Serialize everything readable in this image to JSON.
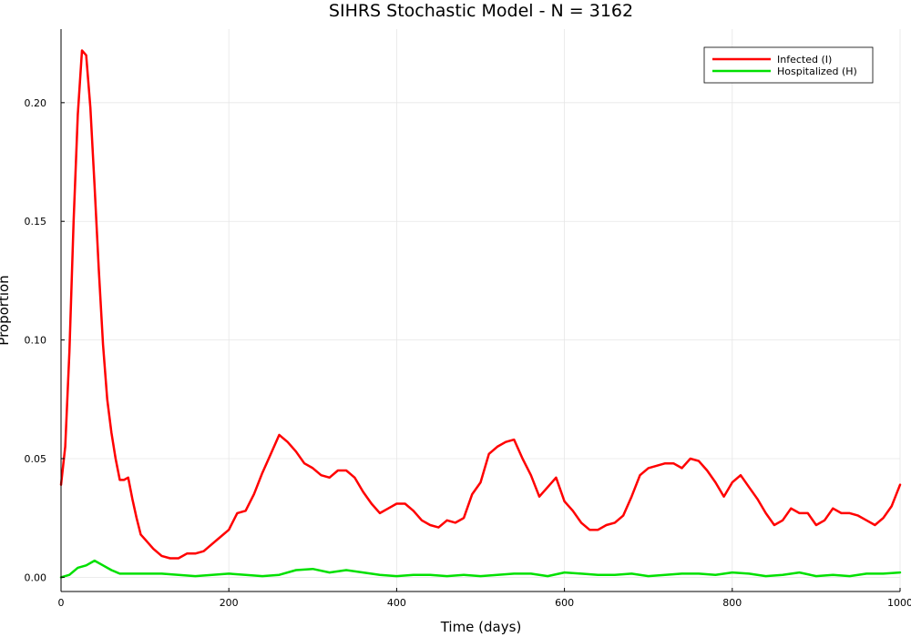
{
  "chart_data": {
    "type": "line",
    "title": "SIHRS Stochastic Model - N = 3162",
    "xlabel": "Time (days)",
    "ylabel": "Proportion",
    "xlim": [
      0,
      1000
    ],
    "ylim": [
      -0.006,
      0.231
    ],
    "xticks": [
      0,
      200,
      400,
      600,
      800,
      1000
    ],
    "yticks": [
      0.0,
      0.05,
      0.1,
      0.15,
      0.2
    ],
    "xtick_labels": [
      "0",
      "200",
      "400",
      "600",
      "800",
      "1000"
    ],
    "ytick_labels": [
      "0.00",
      "0.05",
      "0.10",
      "0.15",
      "0.20"
    ],
    "grid": true,
    "legend_position": "top-right",
    "series": [
      {
        "name": "Infected (I)",
        "color": "#ff0000",
        "x": [
          0,
          5,
          10,
          15,
          20,
          25,
          30,
          35,
          40,
          45,
          50,
          55,
          60,
          65,
          70,
          75,
          80,
          85,
          90,
          95,
          100,
          110,
          120,
          130,
          140,
          150,
          160,
          170,
          180,
          190,
          200,
          210,
          220,
          230,
          240,
          250,
          260,
          270,
          280,
          290,
          300,
          310,
          320,
          330,
          340,
          350,
          360,
          370,
          380,
          390,
          400,
          410,
          420,
          430,
          440,
          450,
          460,
          470,
          480,
          490,
          500,
          510,
          520,
          530,
          540,
          550,
          560,
          570,
          580,
          590,
          600,
          610,
          620,
          630,
          640,
          650,
          660,
          670,
          680,
          690,
          700,
          710,
          720,
          730,
          740,
          750,
          760,
          770,
          780,
          790,
          800,
          810,
          820,
          830,
          840,
          850,
          860,
          870,
          880,
          890,
          900,
          910,
          920,
          930,
          940,
          950,
          960,
          970,
          980,
          990,
          1000
        ],
        "y": [
          0.039,
          0.055,
          0.095,
          0.15,
          0.195,
          0.222,
          0.22,
          0.198,
          0.165,
          0.13,
          0.098,
          0.075,
          0.061,
          0.05,
          0.041,
          0.041,
          0.042,
          0.033,
          0.025,
          0.018,
          0.016,
          0.012,
          0.009,
          0.008,
          0.008,
          0.01,
          0.01,
          0.011,
          0.014,
          0.017,
          0.02,
          0.027,
          0.028,
          0.035,
          0.044,
          0.052,
          0.06,
          0.057,
          0.053,
          0.048,
          0.046,
          0.043,
          0.042,
          0.045,
          0.045,
          0.042,
          0.036,
          0.031,
          0.027,
          0.029,
          0.031,
          0.031,
          0.028,
          0.024,
          0.022,
          0.021,
          0.024,
          0.023,
          0.025,
          0.035,
          0.04,
          0.052,
          0.055,
          0.057,
          0.058,
          0.05,
          0.043,
          0.034,
          0.038,
          0.042,
          0.032,
          0.028,
          0.023,
          0.02,
          0.02,
          0.022,
          0.023,
          0.026,
          0.034,
          0.043,
          0.046,
          0.047,
          0.048,
          0.048,
          0.046,
          0.05,
          0.049,
          0.045,
          0.04,
          0.034,
          0.04,
          0.043,
          0.038,
          0.033,
          0.027,
          0.022,
          0.024,
          0.029,
          0.027,
          0.027,
          0.022,
          0.024,
          0.029,
          0.027,
          0.027,
          0.026,
          0.024,
          0.022,
          0.025,
          0.03,
          0.039
        ]
      },
      {
        "name": "Hospitalized (H)",
        "color": "#00e000",
        "x": [
          0,
          10,
          20,
          30,
          40,
          50,
          60,
          70,
          80,
          90,
          100,
          120,
          140,
          160,
          180,
          200,
          220,
          240,
          260,
          280,
          300,
          320,
          340,
          360,
          380,
          400,
          420,
          440,
          460,
          480,
          500,
          520,
          540,
          560,
          580,
          600,
          620,
          640,
          660,
          680,
          700,
          720,
          740,
          760,
          780,
          800,
          820,
          840,
          860,
          880,
          900,
          920,
          940,
          960,
          980,
          1000
        ],
        "y": [
          0.0,
          0.001,
          0.004,
          0.005,
          0.007,
          0.005,
          0.003,
          0.0015,
          0.0015,
          0.0015,
          0.0015,
          0.0015,
          0.001,
          0.0005,
          0.001,
          0.0015,
          0.001,
          0.0005,
          0.001,
          0.003,
          0.0035,
          0.002,
          0.003,
          0.002,
          0.001,
          0.0005,
          0.001,
          0.001,
          0.0005,
          0.001,
          0.0005,
          0.001,
          0.0015,
          0.0015,
          0.0005,
          0.002,
          0.0015,
          0.001,
          0.001,
          0.0015,
          0.0005,
          0.001,
          0.0015,
          0.0015,
          0.001,
          0.002,
          0.0015,
          0.0005,
          0.001,
          0.002,
          0.0005,
          0.001,
          0.0005,
          0.0015,
          0.0015,
          0.002
        ]
      }
    ]
  }
}
